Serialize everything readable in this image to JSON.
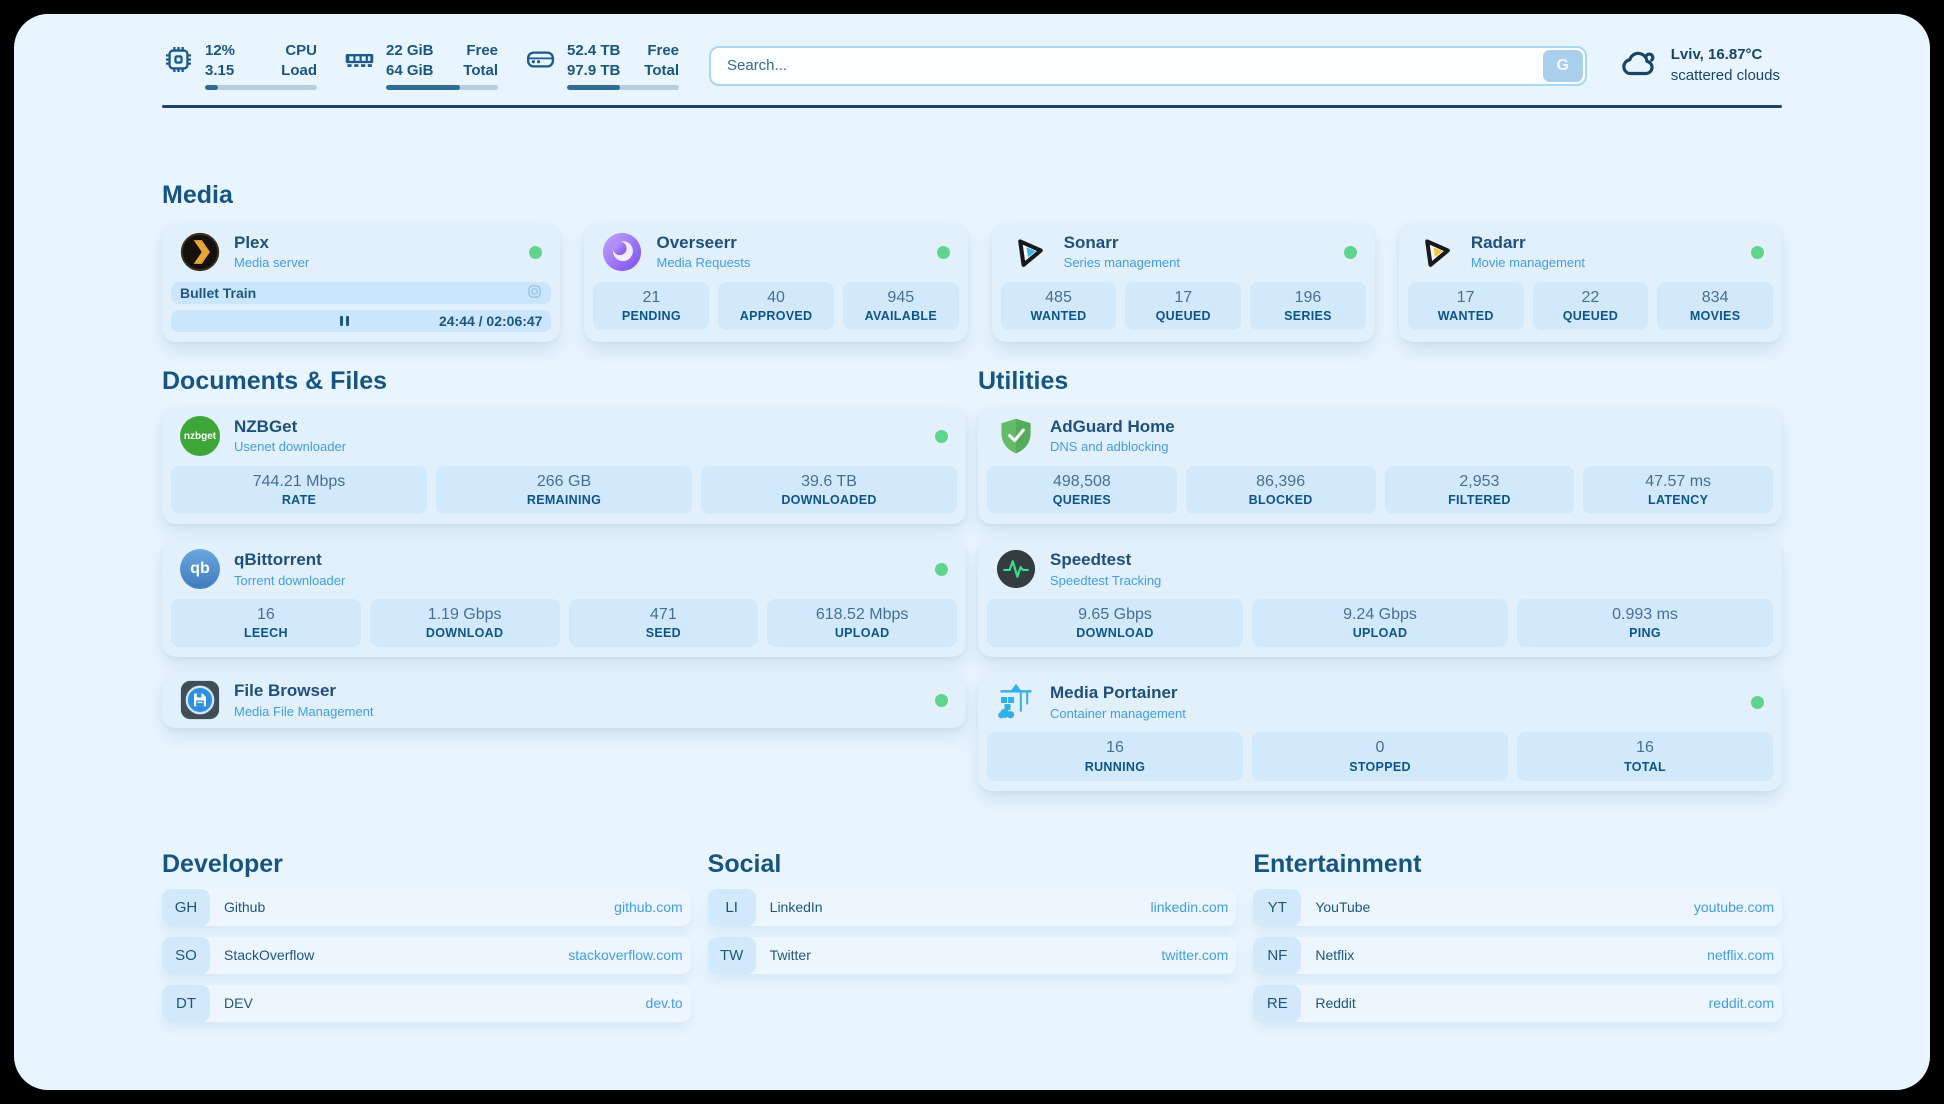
{
  "theme": {
    "panel_bg": "#e9f5fe",
    "card_bg": "#e2f0fb",
    "stat_bg": "#d2e9fb",
    "accent_blue": "#419de5",
    "navy": "#1d507c",
    "online_green": "#5fd48e"
  },
  "icons": {
    "nzbget_label": "nzbget",
    "qbittorrent_label": "qb"
  },
  "header": {
    "resources": [
      {
        "icon": "cpu-chip-icon",
        "values": [
          "12%",
          "3.15"
        ],
        "labels": [
          "CPU",
          "Load"
        ],
        "progress_pct": 12
      },
      {
        "icon": "ram-icon",
        "values": [
          "22 GiB",
          "64 GiB"
        ],
        "labels": [
          "Free",
          "Total"
        ],
        "progress_pct": 66
      },
      {
        "icon": "disk-icon",
        "values": [
          "52.4 TB",
          "97.9 TB"
        ],
        "labels": [
          "Free",
          "Total"
        ],
        "progress_pct": 47
      }
    ],
    "search": {
      "placeholder": "Search...",
      "button": "G"
    },
    "weather": {
      "summary": "Lviv, 16.87°C",
      "condition": "scattered clouds"
    }
  },
  "sections": {
    "media": {
      "title": "Media",
      "plex": {
        "title": "Plex",
        "subtitle": "Media server",
        "now_playing": {
          "name": "Bullet Train",
          "time": "24:44 / 02:06:47",
          "progress_pct": 19.5
        }
      },
      "overseerr": {
        "title": "Overseerr",
        "subtitle": "Media Requests",
        "stats": [
          {
            "value": "21",
            "label": "PENDING"
          },
          {
            "value": "40",
            "label": "APPROVED"
          },
          {
            "value": "945",
            "label": "AVAILABLE"
          }
        ]
      },
      "sonarr": {
        "title": "Sonarr",
        "subtitle": "Series management",
        "stats": [
          {
            "value": "485",
            "label": "WANTED"
          },
          {
            "value": "17",
            "label": "QUEUED"
          },
          {
            "value": "196",
            "label": "SERIES"
          }
        ]
      },
      "radarr": {
        "title": "Radarr",
        "subtitle": "Movie management",
        "stats": [
          {
            "value": "17",
            "label": "WANTED"
          },
          {
            "value": "22",
            "label": "QUEUED"
          },
          {
            "value": "834",
            "label": "MOVIES"
          }
        ]
      }
    },
    "documents": {
      "title": "Documents & Files",
      "nzbget": {
        "title": "NZBGet",
        "subtitle": "Usenet downloader",
        "stats": [
          {
            "value": "744.21 Mbps",
            "label": "RATE"
          },
          {
            "value": "266 GB",
            "label": "REMAINING"
          },
          {
            "value": "39.6 TB",
            "label": "DOWNLOADED"
          }
        ]
      },
      "qbittorrent": {
        "title": "qBittorrent",
        "subtitle": "Torrent downloader",
        "stats": [
          {
            "value": "16",
            "label": "LEECH"
          },
          {
            "value": "1.19 Gbps",
            "label": "DOWNLOAD"
          },
          {
            "value": "471",
            "label": "SEED"
          },
          {
            "value": "618.52 Mbps",
            "label": "UPLOAD"
          }
        ]
      },
      "filebrowser": {
        "title": "File Browser",
        "subtitle": "Media File Management"
      }
    },
    "utilities": {
      "title": "Utilities",
      "adguard": {
        "title": "AdGuard Home",
        "subtitle": "DNS and adblocking",
        "stats": [
          {
            "value": "498,508",
            "label": "QUERIES"
          },
          {
            "value": "86,396",
            "label": "BLOCKED"
          },
          {
            "value": "2,953",
            "label": "FILTERED"
          },
          {
            "value": "47.57 ms",
            "label": "LATENCY"
          }
        ]
      },
      "speedtest": {
        "title": "Speedtest",
        "subtitle": "Speedtest Tracking",
        "stats": [
          {
            "value": "9.65 Gbps",
            "label": "DOWNLOAD"
          },
          {
            "value": "9.24 Gbps",
            "label": "UPLOAD"
          },
          {
            "value": "0.993 ms",
            "label": "PING"
          }
        ]
      },
      "portainer": {
        "title": "Media Portainer",
        "subtitle": "Container management",
        "stats": [
          {
            "value": "16",
            "label": "RUNNING"
          },
          {
            "value": "0",
            "label": "STOPPED"
          },
          {
            "value": "16",
            "label": "TOTAL"
          }
        ]
      }
    },
    "bookmarks": [
      {
        "title": "Developer",
        "links": [
          {
            "abbr": "GH",
            "name": "Github",
            "url": "github.com"
          },
          {
            "abbr": "SO",
            "name": "StackOverflow",
            "url": "stackoverflow.com"
          },
          {
            "abbr": "DT",
            "name": "DEV",
            "url": "dev.to"
          }
        ]
      },
      {
        "title": "Social",
        "links": [
          {
            "abbr": "LI",
            "name": "LinkedIn",
            "url": "linkedin.com"
          },
          {
            "abbr": "TW",
            "name": "Twitter",
            "url": "twitter.com"
          }
        ]
      },
      {
        "title": "Entertainment",
        "links": [
          {
            "abbr": "YT",
            "name": "YouTube",
            "url": "youtube.com"
          },
          {
            "abbr": "NF",
            "name": "Netflix",
            "url": "netflix.com"
          },
          {
            "abbr": "RE",
            "name": "Reddit",
            "url": "reddit.com"
          }
        ]
      }
    ]
  }
}
